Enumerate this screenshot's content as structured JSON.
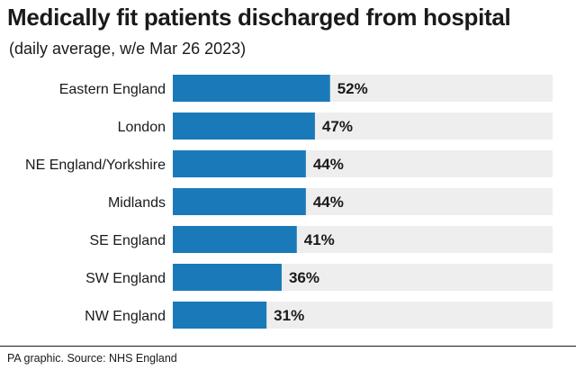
{
  "header": {
    "title": "Medically fit patients discharged from hospital",
    "subtitle": "(daily average, w/e Mar 26 2023)"
  },
  "footer": {
    "source": "PA graphic. Source: NHS England"
  },
  "colors": {
    "bar": "#1a7ab9",
    "track": "#eeeeee"
  },
  "chart_data": {
    "type": "bar",
    "orientation": "horizontal",
    "title": "Medically fit patients discharged from hospital",
    "subtitle": "(daily average, w/e Mar 26 2023)",
    "categories": [
      "Eastern England",
      "London",
      "NE England/Yorkshire",
      "Midlands",
      "SE England",
      "SW England",
      "NW England"
    ],
    "values": [
      52,
      47,
      44,
      44,
      41,
      36,
      31
    ],
    "value_labels": [
      "52%",
      "47%",
      "44%",
      "44%",
      "41%",
      "36%",
      "31%"
    ],
    "unit": "%",
    "xlim": [
      0,
      100
    ],
    "xlabel": "",
    "ylabel": "",
    "grid": false,
    "legend": "none"
  }
}
